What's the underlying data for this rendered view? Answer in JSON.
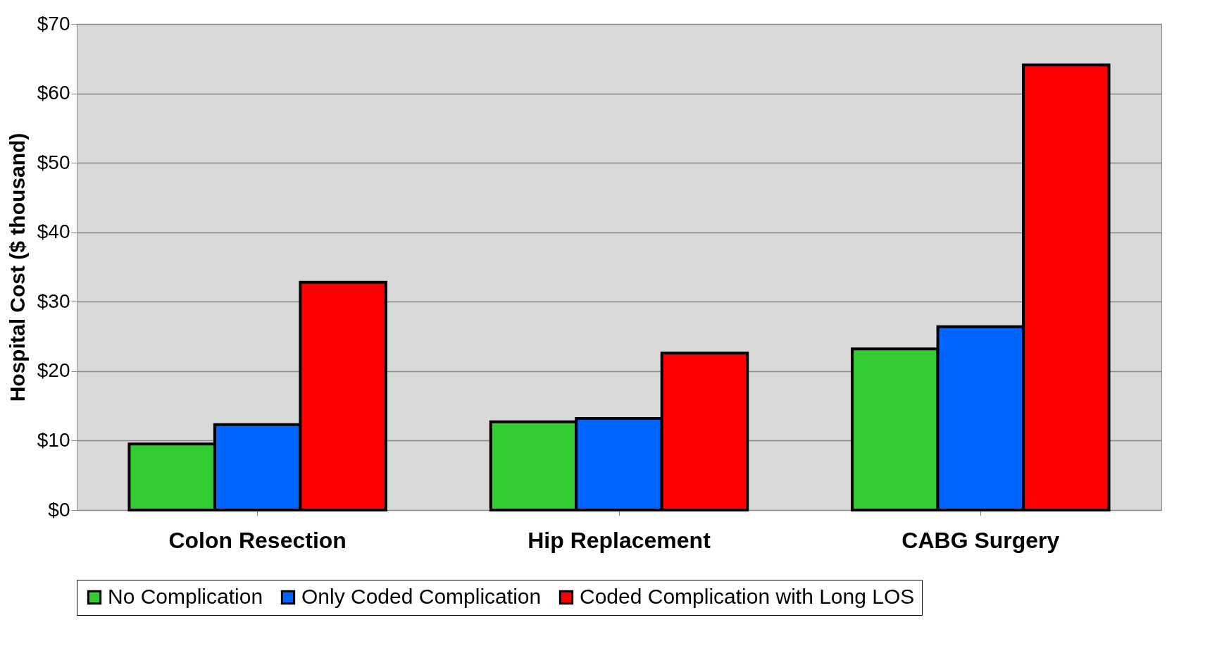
{
  "chart_data": {
    "type": "bar",
    "ylabel": "Hospital Cost ($ thousand)",
    "categories": [
      "Colon Resection",
      "Hip Replacement",
      "CABG Surgery"
    ],
    "series": [
      {
        "name": "No Complication",
        "color": "#33cc33",
        "values": [
          9.5,
          12.7,
          23.2
        ]
      },
      {
        "name": "Only Coded Complication",
        "color": "#0066ff",
        "values": [
          12.3,
          13.2,
          26.4
        ]
      },
      {
        "name": "Coded Complication with Long LOS",
        "color": "#ff0000",
        "values": [
          32.8,
          22.6,
          64.1
        ]
      }
    ],
    "ylim": [
      0,
      70
    ],
    "yticks": [
      {
        "value": 0,
        "label": "$0"
      },
      {
        "value": 10,
        "label": "$10"
      },
      {
        "value": 20,
        "label": "$20"
      },
      {
        "value": 30,
        "label": "$30"
      },
      {
        "value": 40,
        "label": "$40"
      },
      {
        "value": 50,
        "label": "$50"
      },
      {
        "value": 60,
        "label": "$60"
      },
      {
        "value": 70,
        "label": "$70"
      }
    ],
    "grid": "y",
    "legend": "bottom"
  }
}
